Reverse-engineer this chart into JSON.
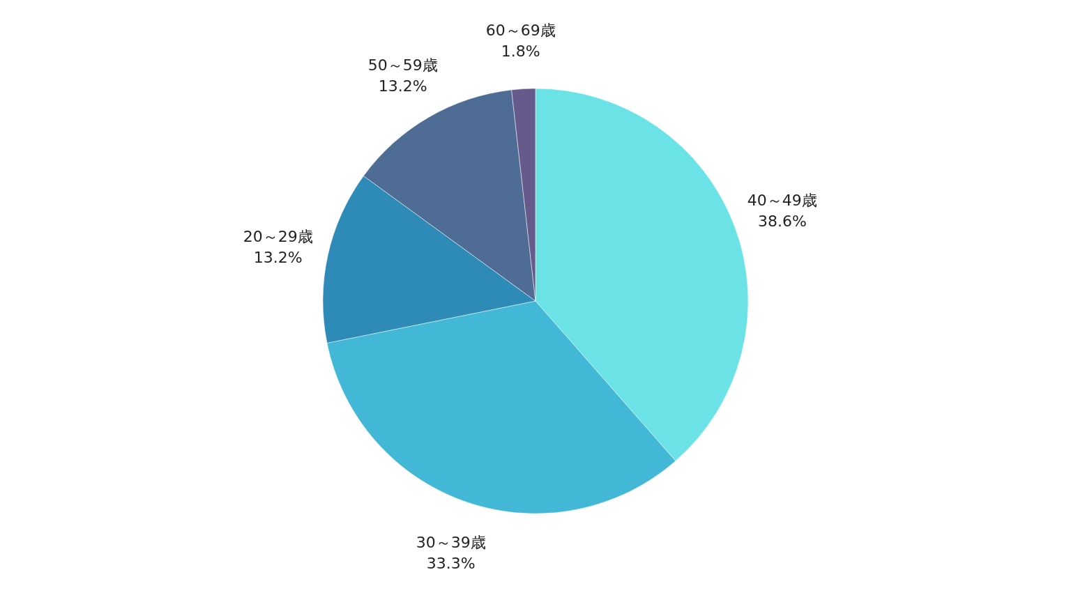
{
  "chart_data": {
    "type": "pie",
    "categories": [
      "40～49歳",
      "30～39歳",
      "20～29歳",
      "50～59歳",
      "60～69歳"
    ],
    "values": [
      38.6,
      33.3,
      13.2,
      13.2,
      1.8
    ],
    "colors": [
      "#6be3e6",
      "#43b7d6",
      "#2e8bb8",
      "#4f6d94",
      "#665a8c"
    ],
    "value_labels": [
      "38.6%",
      "33.3%",
      "13.2%",
      "13.2%",
      "1.8%"
    ]
  }
}
